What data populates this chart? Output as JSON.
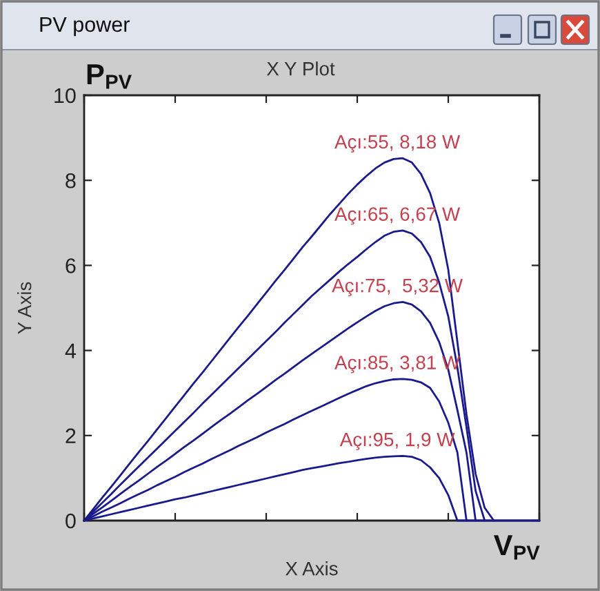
{
  "chart_data": {
    "type": "line",
    "title": "PV power",
    "subtitle": "X Y Plot",
    "xlabel": "X Axis",
    "ylabel": "Y Axis",
    "annotations": [
      {
        "text": "Açı:55, 8,18 W",
        "y": 8.52
      },
      {
        "text": "Açı:65, 6,67 W",
        "y": 6.82
      },
      {
        "text": "Açı:75,  5,32 W",
        "y": 5.14
      },
      {
        "text": "Açı:85, 3,81 W",
        "y": 3.33
      },
      {
        "text": "Açı:95, 1,9 W",
        "y": 1.52
      },
      "P$_{PV}$",
      "V$_{PV}$"
    ],
    "categories": [
      null,
      null,
      null,
      null,
      null,
      null,
      null,
      null,
      null,
      null,
      null,
      null,
      null,
      null,
      null,
      null,
      null,
      null,
      null,
      null,
      null,
      null,
      null,
      null,
      null,
      null,
      null,
      null,
      null,
      null,
      null,
      null,
      null,
      null,
      null,
      null,
      null,
      null,
      null,
      null,
      null,
      null,
      null,
      null,
      null,
      null,
      null,
      null,
      null,
      null,
      null
    ],
    "ylim": [
      0,
      10
    ],
    "yticks": [
      0,
      2,
      4,
      6,
      8,
      10
    ],
    "tick_labels": "y",
    "series": [
      {
        "color": "#1a1a8c",
        "values": [
          0,
          0.27,
          0.54,
          0.8,
          1.07,
          1.34,
          1.61,
          1.87,
          2.14,
          2.41,
          2.68,
          2.95,
          3.22,
          3.48,
          3.75,
          4.02,
          4.29,
          4.56,
          4.82,
          5.09,
          5.36,
          5.63,
          5.89,
          6.16,
          6.43,
          6.68,
          6.94,
          7.2,
          7.44,
          7.68,
          7.9,
          8.1,
          8.28,
          8.42,
          8.5,
          8.52,
          8.42,
          8.15,
          7.7,
          7.0,
          5.9,
          4.2,
          2.5,
          1.1,
          0.3,
          0,
          null,
          null,
          null,
          null,
          null
        ]
      },
      {
        "color": "#1a1a8c",
        "values": [
          0,
          0.21,
          0.42,
          0.63,
          0.85,
          1.06,
          1.27,
          1.48,
          1.69,
          1.9,
          2.11,
          2.32,
          2.53,
          2.75,
          2.96,
          3.17,
          3.38,
          3.59,
          3.8,
          4.01,
          4.22,
          4.43,
          4.65,
          4.86,
          5.07,
          5.28,
          5.47,
          5.66,
          5.85,
          6.03,
          6.2,
          6.38,
          6.55,
          6.7,
          6.79,
          6.82,
          6.75,
          6.55,
          6.2,
          5.6,
          4.8,
          3.6,
          2.2,
          0.7,
          0,
          null,
          null,
          null,
          null,
          null,
          null
        ]
      },
      {
        "color": "#1a1a8c",
        "values": [
          0,
          0.16,
          0.31,
          0.47,
          0.63,
          0.79,
          0.94,
          1.1,
          1.26,
          1.41,
          1.57,
          1.73,
          1.88,
          2.04,
          2.2,
          2.36,
          2.51,
          2.67,
          2.83,
          2.98,
          3.14,
          3.3,
          3.45,
          3.61,
          3.77,
          3.92,
          4.07,
          4.22,
          4.37,
          4.52,
          4.66,
          4.8,
          4.93,
          5.04,
          5.11,
          5.14,
          5.08,
          4.92,
          4.65,
          4.2,
          3.55,
          2.6,
          1.6,
          0,
          null,
          null,
          null,
          null,
          null,
          null,
          null
        ]
      },
      {
        "color": "#1a1a8c",
        "values": [
          0,
          0.1,
          0.21,
          0.31,
          0.41,
          0.52,
          0.62,
          0.72,
          0.83,
          0.93,
          1.03,
          1.14,
          1.24,
          1.34,
          1.45,
          1.55,
          1.65,
          1.76,
          1.86,
          1.96,
          2.07,
          2.17,
          2.27,
          2.38,
          2.48,
          2.58,
          2.68,
          2.78,
          2.88,
          2.98,
          3.07,
          3.16,
          3.23,
          3.28,
          3.32,
          3.33,
          3.31,
          3.25,
          3.12,
          2.8,
          2.3,
          1.6,
          0,
          null,
          null,
          null,
          null,
          null,
          null,
          null,
          null
        ]
      },
      {
        "color": "#1a1a8c",
        "values": [
          0,
          0.05,
          0.1,
          0.15,
          0.2,
          0.25,
          0.3,
          0.35,
          0.4,
          0.45,
          0.5,
          0.54,
          0.59,
          0.64,
          0.69,
          0.74,
          0.79,
          0.84,
          0.89,
          0.94,
          0.99,
          1.04,
          1.09,
          1.14,
          1.19,
          1.23,
          1.27,
          1.31,
          1.35,
          1.38,
          1.42,
          1.45,
          1.48,
          1.5,
          1.51,
          1.52,
          1.5,
          1.42,
          1.25,
          1.0,
          0.6,
          0,
          0,
          0,
          0,
          0,
          0,
          0,
          0,
          0,
          0
        ]
      }
    ]
  }
}
